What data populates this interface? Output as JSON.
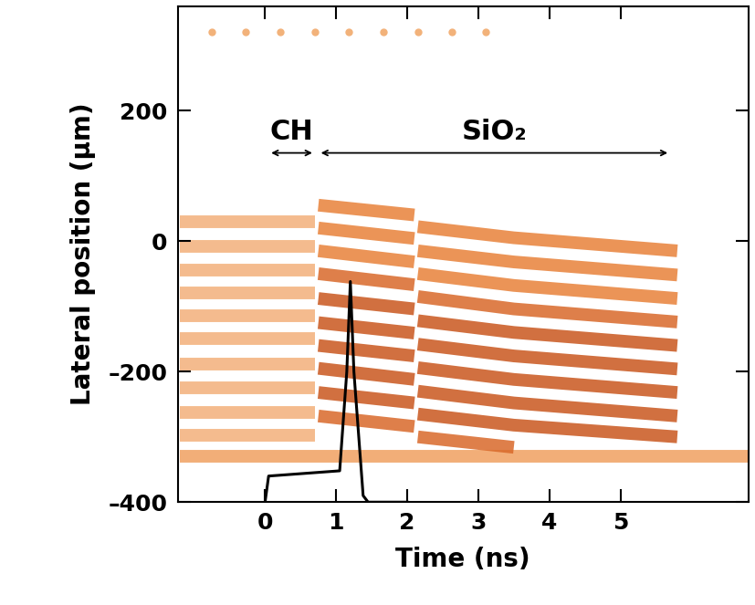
{
  "chart_data": {
    "type": "line",
    "x_label": "Time (ns)",
    "y_label": "Lateral position (μm)",
    "xlim": [
      -1.23,
      6.8
    ],
    "ylim": [
      -400,
      360
    ],
    "xticks": [
      0,
      1,
      2,
      3,
      4,
      5
    ],
    "yticks": [
      {
        "value": -400,
        "label": "–400"
      },
      {
        "value": -200,
        "label": "–200"
      },
      0,
      200
    ],
    "grid": false,
    "annotations": [
      {
        "text": "CH",
        "x_from": 0.05,
        "x_to": 0.7,
        "y": 135
      },
      {
        "text": "SiO₂",
        "x_from": 0.75,
        "x_to": 5.7,
        "y": 135
      }
    ],
    "series": [
      {
        "type": "scatter",
        "color": "#f2b27a",
        "marker": "o",
        "x": [
          -0.75,
          -0.27,
          0.22,
          0.7,
          1.18,
          1.66,
          2.15,
          2.63,
          3.11
        ],
        "values": [
          320,
          320,
          320,
          320,
          320,
          320,
          320,
          320,
          320
        ]
      },
      {
        "type": "fringe",
        "color": "#f0a060",
        "x": [
          -1.2,
          6.8
        ],
        "values": [
          -330,
          -330
        ]
      },
      {
        "type": "fringe",
        "color": "#f3b07a",
        "x": [
          -1.2,
          0.7
        ],
        "values": [
          30,
          30
        ]
      },
      {
        "type": "fringe",
        "color": "#f3b07a",
        "x": [
          -1.2,
          0.7
        ],
        "values": [
          -8,
          -8
        ]
      },
      {
        "type": "fringe",
        "color": "#f3b07a",
        "x": [
          -1.2,
          0.7
        ],
        "values": [
          -45,
          -45
        ]
      },
      {
        "type": "fringe",
        "color": "#f3b07a",
        "x": [
          -1.2,
          0.7
        ],
        "values": [
          -80,
          -80
        ]
      },
      {
        "type": "fringe",
        "color": "#f3b07a",
        "x": [
          -1.2,
          0.7
        ],
        "values": [
          -115,
          -115
        ]
      },
      {
        "type": "fringe",
        "color": "#f3b07a",
        "x": [
          -1.2,
          0.7
        ],
        "values": [
          -150,
          -150
        ]
      },
      {
        "type": "fringe",
        "color": "#f3b07a",
        "x": [
          -1.2,
          0.7
        ],
        "values": [
          -188,
          -188
        ]
      },
      {
        "type": "fringe",
        "color": "#f3b07a",
        "x": [
          -1.2,
          0.7
        ],
        "values": [
          -225,
          -225
        ]
      },
      {
        "type": "fringe",
        "color": "#f3b07a",
        "x": [
          -1.2,
          0.7
        ],
        "values": [
          -262,
          -262
        ]
      },
      {
        "type": "fringe",
        "color": "#f3b07a",
        "x": [
          -1.2,
          0.7
        ],
        "values": [
          -298,
          -298
        ]
      },
      {
        "type": "fringe",
        "color": "#e8823a",
        "x": [
          0.75,
          2.1,
          2.12,
          2.15,
          3.5,
          5.8
        ],
        "values": [
          55,
          40,
          null,
          22,
          5,
          -15
        ]
      },
      {
        "type": "fringe",
        "color": "#e8823a",
        "x": [
          0.75,
          2.1,
          2.12,
          2.15,
          3.5,
          5.8
        ],
        "values": [
          20,
          4,
          null,
          -15,
          -32,
          -52
        ]
      },
      {
        "type": "fringe",
        "color": "#e8823a",
        "x": [
          0.75,
          2.1,
          2.12,
          2.15,
          3.5,
          5.8
        ],
        "values": [
          -15,
          -32,
          null,
          -50,
          -68,
          -88
        ]
      },
      {
        "type": "fringe",
        "color": "#d9692a",
        "x": [
          0.75,
          2.1,
          2.12,
          2.15,
          3.5,
          5.8
        ],
        "values": [
          -50,
          -67,
          null,
          -85,
          -104,
          -124
        ]
      },
      {
        "type": "fringe",
        "color": "#c9571e",
        "x": [
          0.75,
          2.1,
          2.12,
          2.15,
          3.5,
          5.8
        ],
        "values": [
          -88,
          -104,
          null,
          -122,
          -140,
          -160
        ]
      },
      {
        "type": "fringe",
        "color": "#c9571e",
        "x": [
          0.75,
          2.1,
          2.12,
          2.15,
          3.5,
          5.8
        ],
        "values": [
          -125,
          -141,
          null,
          -158,
          -176,
          -196
        ]
      },
      {
        "type": "fringe",
        "color": "#c9571e",
        "x": [
          0.75,
          2.1,
          2.12,
          2.15,
          3.5,
          5.8
        ],
        "values": [
          -160,
          -176,
          null,
          -194,
          -212,
          -232
        ]
      },
      {
        "type": "fringe",
        "color": "#c9571e",
        "x": [
          0.75,
          2.1,
          2.12,
          2.15,
          3.5,
          5.8
        ],
        "values": [
          -195,
          -212,
          null,
          -230,
          -248,
          -268
        ]
      },
      {
        "type": "fringe",
        "color": "#c9571e",
        "x": [
          0.75,
          2.1,
          2.12,
          2.15,
          3.5,
          5.8
        ],
        "values": [
          -232,
          -248,
          null,
          -265,
          -282,
          -300
        ]
      },
      {
        "type": "fringe",
        "color": "#d9692a",
        "x": [
          0.75,
          2.1,
          2.12,
          2.15,
          3.5
        ],
        "values": [
          -268,
          -284,
          null,
          -300,
          -316
        ]
      },
      {
        "type": "line",
        "color": "#000000",
        "x": [
          0,
          0.05,
          1.05,
          1.15,
          1.2,
          1.25,
          1.38,
          1.45,
          2.0
        ],
        "values": [
          -400,
          -360,
          -352,
          -200,
          -62,
          -200,
          -390,
          -400,
          -400
        ]
      }
    ]
  }
}
